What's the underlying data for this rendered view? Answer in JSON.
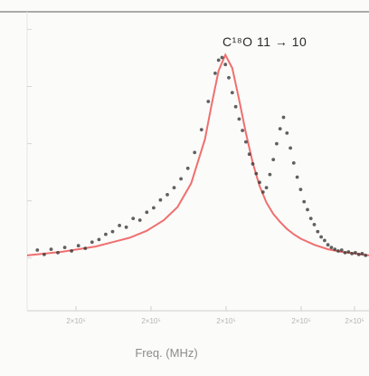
{
  "chart_data": {
    "type": "line",
    "annotation": "C¹⁸O 11 → 10",
    "xlabel": "Freq. (MHz)",
    "x_tick_labels": [
      "2×10⁵",
      "2×10⁵",
      "2×10⁵",
      "2×10⁵",
      "2×10⁵"
    ],
    "xlim": [
      0,
      100
    ],
    "ylim": [
      -0.6,
      2.8
    ],
    "grid": false,
    "series": [
      {
        "kind": "line",
        "color": "#ef6f6f",
        "x": [
          0,
          10,
          20,
          30,
          35,
          40,
          44,
          48,
          52,
          54,
          56,
          58,
          60,
          62,
          64,
          66,
          68,
          70,
          72,
          74,
          76,
          78,
          80,
          84,
          88,
          92,
          96,
          100
        ],
        "y": [
          0.03,
          0.07,
          0.13,
          0.23,
          0.31,
          0.43,
          0.58,
          0.85,
          1.35,
          1.75,
          2.13,
          2.31,
          2.16,
          1.8,
          1.42,
          1.08,
          0.82,
          0.63,
          0.5,
          0.41,
          0.33,
          0.27,
          0.22,
          0.15,
          0.1,
          0.07,
          0.05,
          0.03
        ]
      },
      {
        "kind": "points",
        "color": "#3a3a3a",
        "x": [
          3,
          5,
          7,
          9,
          11,
          13,
          15,
          17,
          19,
          21,
          23,
          25,
          27,
          29,
          31,
          33,
          35,
          37,
          39,
          41,
          43,
          45,
          47,
          49,
          51,
          53,
          55,
          56,
          57,
          58,
          59,
          60,
          61,
          62,
          63,
          64,
          65,
          66,
          67,
          68,
          69,
          70,
          71,
          72,
          73,
          74,
          75,
          76,
          77,
          78,
          79,
          80,
          81,
          82,
          83,
          84,
          85,
          86,
          87,
          88,
          89,
          90,
          91,
          92,
          93,
          94,
          95,
          96,
          97,
          98,
          99
        ],
        "y": [
          0.09,
          0.04,
          0.1,
          0.06,
          0.12,
          0.08,
          0.14,
          0.11,
          0.18,
          0.21,
          0.27,
          0.3,
          0.37,
          0.35,
          0.45,
          0.43,
          0.52,
          0.57,
          0.66,
          0.72,
          0.8,
          0.9,
          1.02,
          1.2,
          1.46,
          1.78,
          2.1,
          2.25,
          2.28,
          2.2,
          2.05,
          1.88,
          1.72,
          1.58,
          1.45,
          1.32,
          1.18,
          1.07,
          0.96,
          0.86,
          0.75,
          0.8,
          0.95,
          1.12,
          1.3,
          1.47,
          1.6,
          1.42,
          1.25,
          1.08,
          0.92,
          0.78,
          0.64,
          0.55,
          0.45,
          0.38,
          0.3,
          0.24,
          0.2,
          0.15,
          0.12,
          0.1,
          0.08,
          0.09,
          0.06,
          0.07,
          0.05,
          0.06,
          0.04,
          0.05,
          0.03
        ]
      }
    ]
  }
}
